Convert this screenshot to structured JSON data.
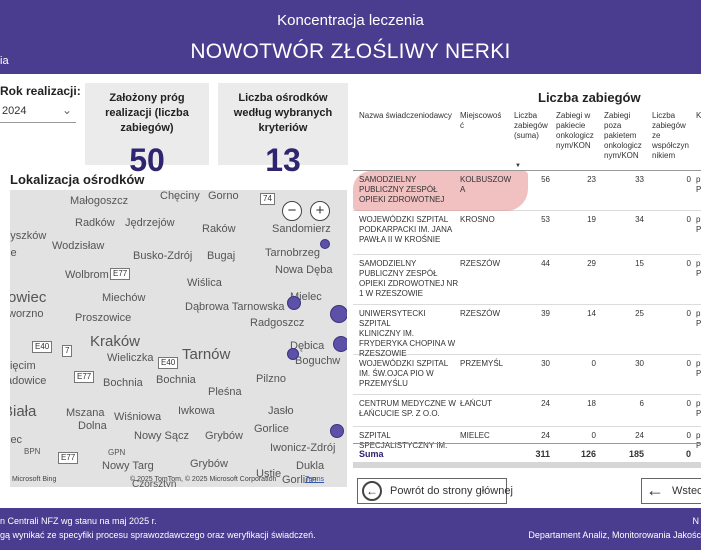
{
  "header": {
    "subtitle": "Koncentracja leczenia",
    "title": "NOWOTWÓR ZŁOŚLIWY NERKI",
    "left_fragment": "ia"
  },
  "filter": {
    "label": "Rok realizacji:",
    "value": "2024"
  },
  "kpis": [
    {
      "title": "Założony próg realizacji (liczba zabiegów)",
      "value": "50"
    },
    {
      "title": "Liczba ośrodków według wybranych kryteriów",
      "value": "13"
    }
  ],
  "map": {
    "title": "Lokalizacja ośrodków",
    "zoom_out": "−",
    "zoom_in": "+",
    "copyright": "© 2025 TomTom, © 2025 Microsoft Corporation",
    "terms": "Terms",
    "bing": "Microsoft Bing",
    "towns": [
      "Chęciny",
      "Gorno",
      "Małogoszcz",
      "Radków",
      "Jędrzejów",
      "Raków",
      "Sandomierz",
      "Wyszków",
      "Wodzisław",
      "Busko-Zdrój",
      "Bugaj",
      "Tarnobrzeg",
      "Wolbrom",
      "Wiślica",
      "Nowa Dęba",
      "owiec",
      "Miechów",
      "Dąbrowa Tarnowska",
      "Mielec",
      "Proszowice",
      "Radgoszcz",
      "Kraków",
      "Tarnów",
      "Dębica",
      "Wieliczka",
      "Boguchw",
      "więcim",
      "adowice",
      "Bochnia",
      "Bochnia",
      "Pilzno",
      "Pleśna",
      "-Biała",
      "Mszana",
      "Dolna",
      "Wiśniowa",
      "Iwkowa",
      "Jasło",
      "Nowy Sącz",
      "Grybów",
      "Gorlice",
      "Iwonicz-Zdrój",
      "Nowy Targ",
      "Grybów",
      "Dukla",
      "Czorsztyn",
      "Ustie",
      "worzno",
      "ie",
      "iec",
      "BPN",
      "GPN",
      "Gorlice"
    ],
    "roads": [
      "74",
      "E77",
      "E40",
      "7",
      "E40",
      "E77",
      "E77"
    ]
  },
  "table": {
    "title": "Liczba zabiegów",
    "columns": [
      "Nazwa świadczeniodawcy",
      "Miejscowość",
      "Liczba zabiegów (suma)",
      "Zabiegi w pakiecie onkologicznym/KON",
      "Zabiegi poza pakietem onkologicznym/KON",
      "Liczba zabiegów ze współczynnikiem",
      "K"
    ],
    "header_lines": {
      "c1": "Nazwa świadczeniodawcy",
      "c2a": "Miejscowoś",
      "c2b": "ć",
      "c3": "Liczba\nzabiegów\n(suma)",
      "c4": "Zabiegi w\npakiecie\nonkologicz\nnym/KON",
      "c5": "Zabiegi\npoza\npakietem\nonkologicz\nnym/KON",
      "c6": "Liczba\nzabiegów\nze\nwspółczyn\nnikiem",
      "c7": "K"
    },
    "sort_indicator": "▼",
    "rows": [
      {
        "name": "SAMODZIELNY\nPUBLICZNY ZESPÓŁ\nOPIEKI ZDROWOTNEJ",
        "city": "KOLBUSZOW\nA",
        "sum": "56",
        "in_pkg": "23",
        "out_pkg": "33",
        "coef": "0",
        "k": "p\nP"
      },
      {
        "name": "WOJEWÓDZKI SZPITAL\nPODKARPACKI IM. JANA\nPAWŁA II W KROŚNIE",
        "city": "KROSNO",
        "sum": "53",
        "in_pkg": "19",
        "out_pkg": "34",
        "coef": "0",
        "k": "p\nP"
      },
      {
        "name": "SAMODZIELNY\nPUBLICZNY ZESPÓŁ\nOPIEKI ZDROWOTNEJ NR\n1 W RZESZOWIE",
        "city": "RZESZÓW",
        "sum": "44",
        "in_pkg": "29",
        "out_pkg": "15",
        "coef": "0",
        "k": "p\nP"
      },
      {
        "name": "UNIWERSYTECKI SZPITAL\nKLINICZNY IM.\nFRYDERYKA CHOPINA W\nRZESZOWIE",
        "city": "RZESZÓW",
        "sum": "39",
        "in_pkg": "14",
        "out_pkg": "25",
        "coef": "0",
        "k": "p\nP"
      },
      {
        "name": "WOJEWÓDZKI SZPITAL\nIM. ŚW.OJCA PIO W\nPRZEMYŚLU",
        "city": "PRZEMYŚL",
        "sum": "30",
        "in_pkg": "0",
        "out_pkg": "30",
        "coef": "0",
        "k": "p\nP"
      },
      {
        "name": "CENTRUM MEDYCZNE W\nŁAŃCUCIE SP. Z O.O.",
        "city": "ŁAŃCUT",
        "sum": "24",
        "in_pkg": "18",
        "out_pkg": "6",
        "coef": "0",
        "k": "p\nP"
      },
      {
        "name": "SZPITAL\nSPECJALISTYCZNY IM.",
        "city": "MIELEC",
        "sum": "24",
        "in_pkg": "0",
        "out_pkg": "24",
        "coef": "0",
        "k": "p\nP"
      }
    ],
    "sum_row": {
      "label": "Suma",
      "sum": "311",
      "in_pkg": "126",
      "out_pkg": "185",
      "coef": "0"
    }
  },
  "buttons": {
    "home": "Powrót do strony głównej",
    "back": "Wstecz"
  },
  "footer": {
    "left1": "n Centrali NFZ wg stanu na maj 2025 r.",
    "left2": "gą wynikać ze specyfiki procesu sprawozdawczego oraz weryfikacji świadczeń.",
    "right1": "N",
    "right2": "Departament Analiz, Monitorowania Jakośc"
  },
  "colors": {
    "primary": "#4a3d8f",
    "kpi_value": "#2e2470",
    "highlight": "#e68c8c",
    "marker": "#5c51a6"
  }
}
